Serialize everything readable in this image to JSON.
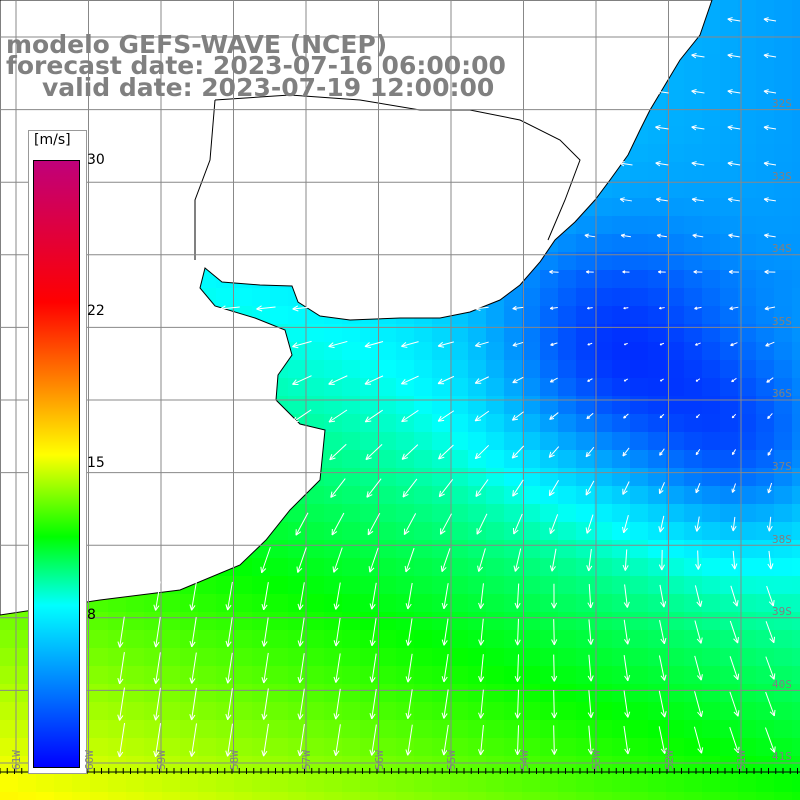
{
  "title": {
    "line1": "modelo GEFS-WAVE (NCEP)",
    "line2": "forecast date: 2023-07-16 06:00:00",
    "line3": "valid date: 2023-07-19 12:00:00"
  },
  "colorbar": {
    "unit": "[m/s]",
    "ticks": [
      "30",
      "22",
      "15",
      "8"
    ],
    "tick_values": [
      30,
      22,
      15,
      8
    ],
    "range": [
      0,
      30
    ],
    "colors": [
      "#0000ff",
      "#00ffff",
      "#00ff00",
      "#ffff00",
      "#ff8800",
      "#ff0000",
      "#c0007a"
    ]
  },
  "lat_labels": [
    "32S",
    "33S",
    "34S",
    "35S",
    "36S",
    "37S",
    "38S",
    "39S",
    "40S",
    "41S"
  ],
  "lon_labels": [
    "61W",
    "60W",
    "59W",
    "58W",
    "57W",
    "56W",
    "55W",
    "54W",
    "53W",
    "52W",
    "51W"
  ],
  "map": {
    "variable": "wind speed and direction",
    "grid_color": "#888888",
    "land_color": "#ffffff",
    "coast_color": "#000000"
  }
}
